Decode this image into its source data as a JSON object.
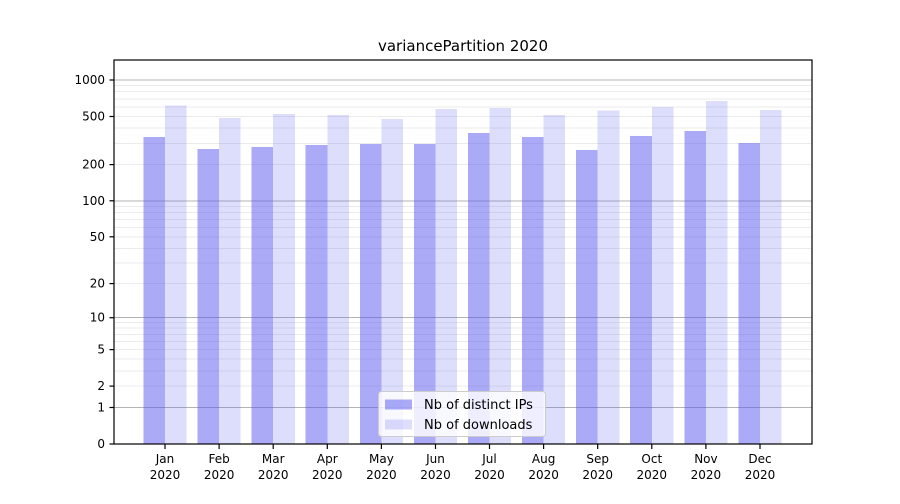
{
  "chart_data": {
    "type": "bar",
    "title": "variancePartition 2020",
    "xlabel": "",
    "ylabel": "",
    "yscale": "log1p",
    "ylim": [
      0,
      1430
    ],
    "yticks": [
      1000,
      500,
      200,
      100,
      50,
      20,
      10,
      5,
      2,
      1,
      0
    ],
    "decade_gridlines": [
      1,
      10,
      100,
      1000
    ],
    "categories": [
      {
        "month": "Jan",
        "year": "2020"
      },
      {
        "month": "Feb",
        "year": "2020"
      },
      {
        "month": "Mar",
        "year": "2020"
      },
      {
        "month": "Apr",
        "year": "2020"
      },
      {
        "month": "May",
        "year": "2020"
      },
      {
        "month": "Jun",
        "year": "2020"
      },
      {
        "month": "Jul",
        "year": "2020"
      },
      {
        "month": "Aug",
        "year": "2020"
      },
      {
        "month": "Sep",
        "year": "2020"
      },
      {
        "month": "Oct",
        "year": "2020"
      },
      {
        "month": "Nov",
        "year": "2020"
      },
      {
        "month": "Dec",
        "year": "2020"
      }
    ],
    "series": [
      {
        "name": "Nb of distinct IPs",
        "color": "rgba(85,85,240,0.50)",
        "values": [
          339,
          269,
          280,
          290,
          296,
          296,
          365,
          339,
          264,
          345,
          379,
          302
        ]
      },
      {
        "name": "Nb of downloads",
        "color": "rgba(85,85,240,0.20)",
        "values": [
          615,
          486,
          525,
          515,
          477,
          577,
          588,
          515,
          560,
          599,
          671,
          566
        ]
      }
    ],
    "legend": {
      "position": "lower center",
      "background": "rgba(255,255,255,0.8)",
      "border_color": "#cccccc"
    },
    "colors": {
      "spine": "#000000",
      "grid_minor": "#ebebeb",
      "grid_major": "#b3b3b3",
      "text": "#000000"
    },
    "grid": "both"
  }
}
